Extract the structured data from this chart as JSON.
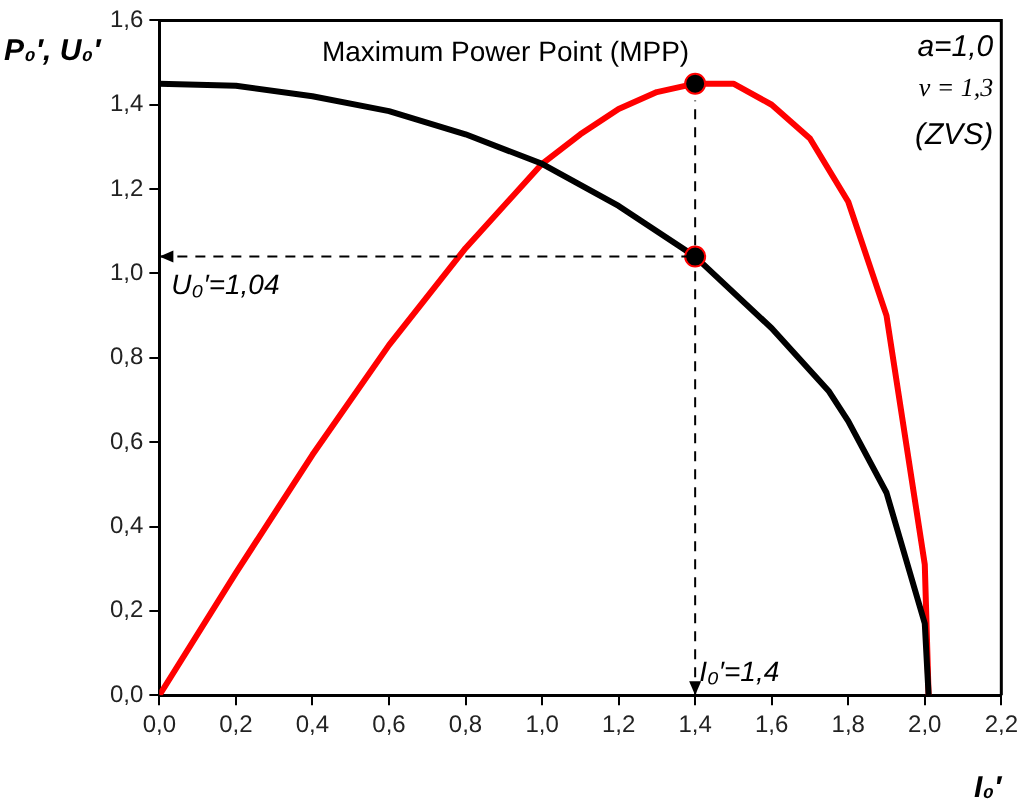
{
  "chart_data": {
    "type": "line",
    "xlabel": "I₀′",
    "ylabel": "P₀′, U₀′",
    "xlim": [
      0,
      2.2
    ],
    "ylim": [
      0,
      1.6
    ],
    "xticks": [
      {
        "value": 0,
        "label": "0,0"
      },
      {
        "value": 0.2,
        "label": "0,2"
      },
      {
        "value": 0.4,
        "label": "0,4"
      },
      {
        "value": 0.6,
        "label": "0,6"
      },
      {
        "value": 0.8,
        "label": "0,8"
      },
      {
        "value": 1.0,
        "label": "1,0"
      },
      {
        "value": 1.2,
        "label": "1,2"
      },
      {
        "value": 1.4,
        "label": "1,4"
      },
      {
        "value": 1.6,
        "label": "1,6"
      },
      {
        "value": 1.8,
        "label": "1,8"
      },
      {
        "value": 2.0,
        "label": "2,0"
      },
      {
        "value": 2.2,
        "label": "2,2"
      }
    ],
    "yticks": [
      {
        "value": 0,
        "label": "0,0"
      },
      {
        "value": 0.2,
        "label": "0,2"
      },
      {
        "value": 0.4,
        "label": "0,4"
      },
      {
        "value": 0.6,
        "label": "0,6"
      },
      {
        "value": 0.8,
        "label": "0,8"
      },
      {
        "value": 1.0,
        "label": "1,0"
      },
      {
        "value": 1.2,
        "label": "1,2"
      },
      {
        "value": 1.4,
        "label": "1,4"
      },
      {
        "value": 1.6,
        "label": "1,6"
      }
    ],
    "grid": false,
    "legend": false,
    "marker": "none",
    "line_style": "solid",
    "series": [
      {
        "color": "#000000",
        "x": [
          0,
          0.2,
          0.4,
          0.6,
          0.8,
          1.0,
          1.2,
          1.4,
          1.6,
          1.75,
          1.8,
          1.9,
          2.0,
          2.01
        ],
        "values": [
          1.45,
          1.445,
          1.42,
          1.385,
          1.33,
          1.26,
          1.16,
          1.04,
          0.87,
          0.72,
          0.65,
          0.48,
          0.17,
          0
        ]
      },
      {
        "color": "#ff0000",
        "x": [
          0,
          0.2,
          0.4,
          0.6,
          0.8,
          1.0,
          1.1,
          1.2,
          1.3,
          1.4,
          1.5,
          1.6,
          1.7,
          1.8,
          1.9,
          2.0,
          2.01
        ],
        "values": [
          0,
          0.29,
          0.57,
          0.83,
          1.06,
          1.26,
          1.33,
          1.39,
          1.43,
          1.45,
          1.45,
          1.4,
          1.32,
          1.17,
          0.9,
          0.31,
          0
        ]
      },
      {
        "type": "scatter",
        "marker": "circle",
        "color": "#000000",
        "x": [
          1.4,
          1.4
        ],
        "values": [
          1.45,
          1.04
        ]
      }
    ],
    "ref_lines": [
      {
        "axis": "x",
        "value": 1.4,
        "label": "I₀′=1,4",
        "line_style": "dashed",
        "color": "#000000"
      },
      {
        "axis": "y",
        "value": 1.04,
        "label": "U₀′=1,04",
        "line_style": "dashed",
        "color": "#000000"
      }
    ],
    "annotations": [
      {
        "text": "Maximum Power Point (MPP)",
        "x": 1.4,
        "y": 1.45
      },
      "a=1,0",
      "ν = 1,3",
      "(ZVS)"
    ]
  }
}
